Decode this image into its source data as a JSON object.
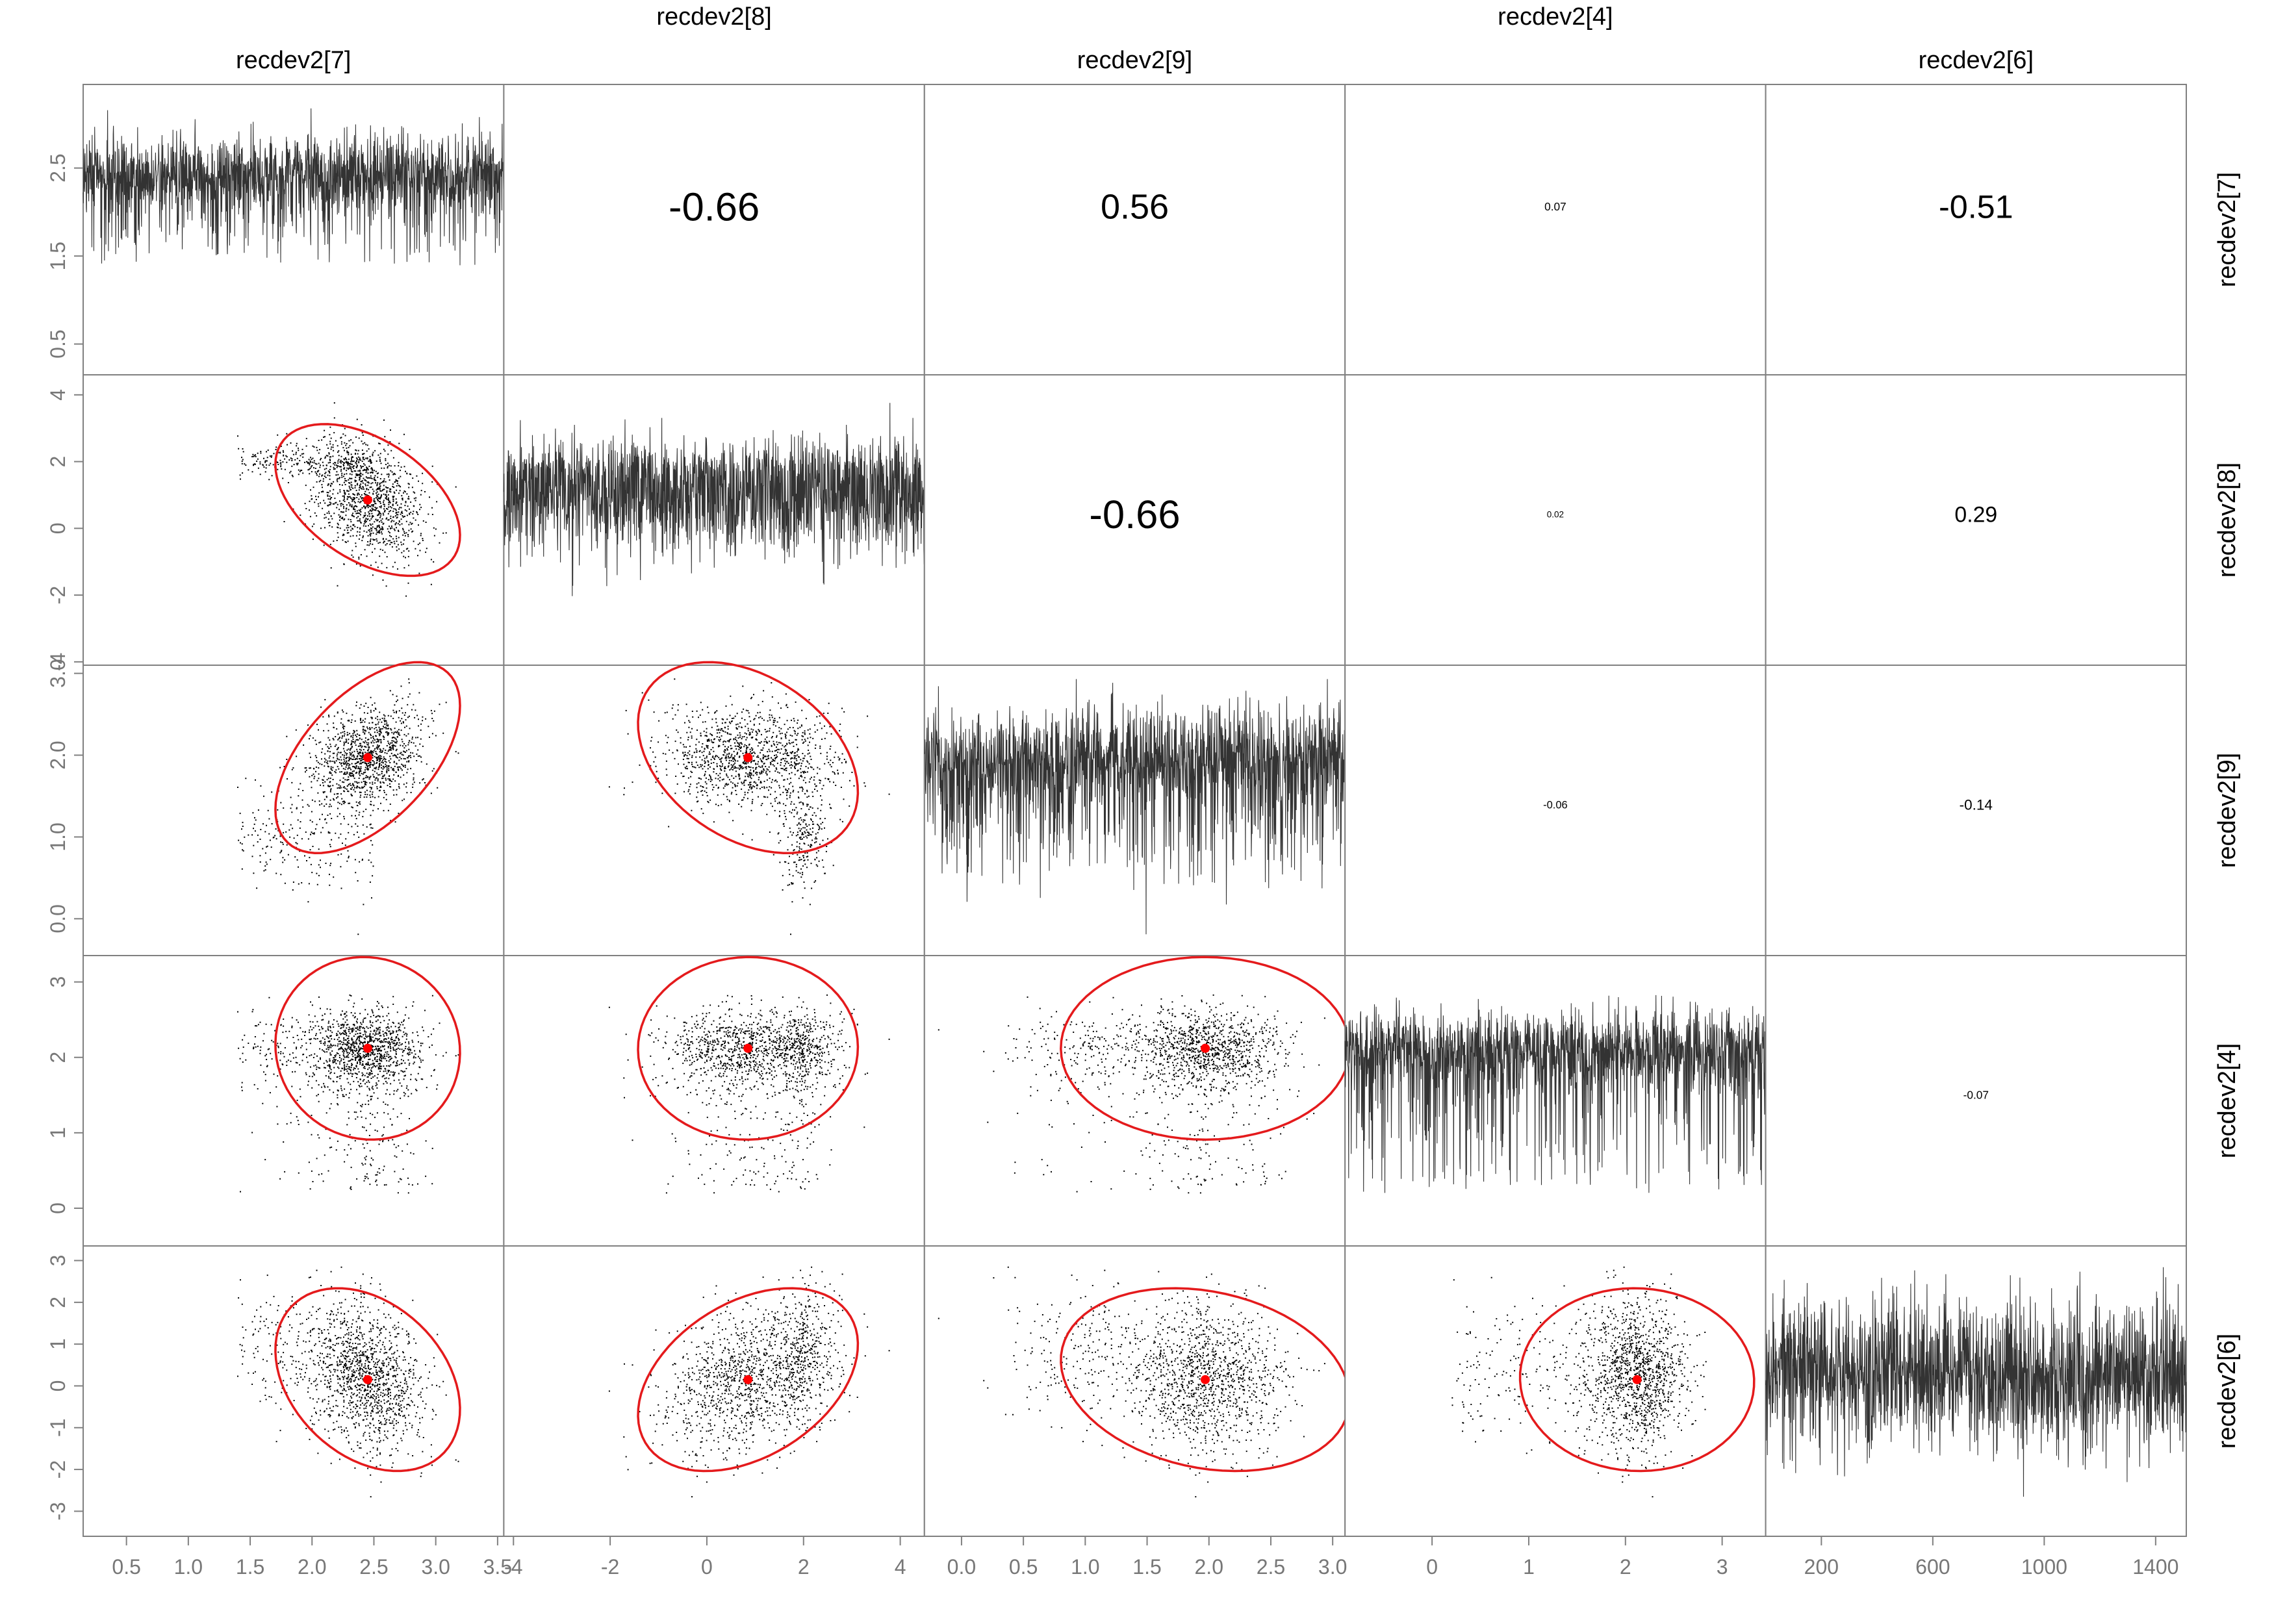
{
  "chart_data": {
    "type": "scatter",
    "variables": [
      "recdev2[7]",
      "recdev2[8]",
      "recdev2[9]",
      "recdev2[4]",
      "recdev2[6]"
    ],
    "trace_iteration_range": [
      1,
      1500
    ],
    "bottom_ticks": [
      [
        "0.5",
        "1.0",
        "1.5",
        "2.0",
        "2.5",
        "3.0",
        "3.5"
      ],
      [
        "-4",
        "-2",
        "0",
        "2",
        "4"
      ],
      [
        "0.0",
        "0.5",
        "1.0",
        "1.5",
        "2.0",
        "2.5",
        "3.0"
      ],
      [
        "0",
        "1",
        "2",
        "3"
      ],
      [
        "200",
        "600",
        "1000",
        "1400"
      ]
    ],
    "left_ticks": [
      [
        "0.5",
        "1.5",
        "2.5"
      ],
      [
        "-4",
        "-2",
        "0",
        "2",
        "4"
      ],
      [
        "0.0",
        "1.0",
        "2.0",
        "3.0"
      ],
      [
        "0",
        "1",
        "2",
        "3"
      ],
      [
        "-3",
        "-2",
        "-1",
        "0",
        "1",
        "2",
        "3"
      ]
    ],
    "correlations": [
      {
        "row": "recdev2[7]",
        "col": "recdev2[8]",
        "value": "-0.66"
      },
      {
        "row": "recdev2[7]",
        "col": "recdev2[9]",
        "value": "0.56"
      },
      {
        "row": "recdev2[7]",
        "col": "recdev2[4]",
        "value": "0.07"
      },
      {
        "row": "recdev2[7]",
        "col": "recdev2[6]",
        "value": "-0.51"
      },
      {
        "row": "recdev2[8]",
        "col": "recdev2[9]",
        "value": "-0.66"
      },
      {
        "row": "recdev2[8]",
        "col": "recdev2[4]",
        "value": "0.02"
      },
      {
        "row": "recdev2[8]",
        "col": "recdev2[6]",
        "value": "0.29"
      },
      {
        "row": "recdev2[9]",
        "col": "recdev2[4]",
        "value": "-0.06"
      },
      {
        "row": "recdev2[9]",
        "col": "recdev2[6]",
        "value": "-0.14"
      },
      {
        "row": "recdev2[4]",
        "col": "recdev2[6]",
        "value": "-0.07"
      }
    ],
    "means": {
      "recdev2[7]": 2.45,
      "recdev2[8]": 0.85,
      "recdev2[9]": 1.97,
      "recdev2[4]": 2.12,
      "recdev2[6]": 0.15
    },
    "colors": {
      "points": "#000000",
      "ellipse": "#e41a1c",
      "mean_marker": "#ff0000",
      "trace": "#333333",
      "frame": "#808080"
    }
  }
}
